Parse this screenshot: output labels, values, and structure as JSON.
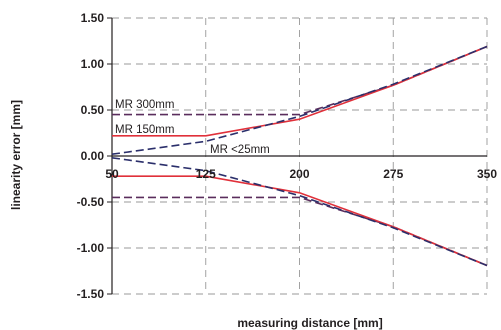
{
  "chart_data": {
    "type": "line",
    "title": "",
    "xlabel": "measuring distance [mm]",
    "ylabel": "linearity error  [mm]",
    "xlim": [
      50,
      350
    ],
    "ylim": [
      -1.5,
      1.5
    ],
    "x_ticks": [
      "50",
      "125",
      "200",
      "275",
      "350"
    ],
    "y_ticks": [
      "1.50",
      "1.00",
      "0.50",
      "0.00",
      "-0.50",
      "-1.00",
      "-1.50"
    ],
    "grid": true,
    "annotations": [
      "MR 300mm",
      "MR 150mm",
      "MR <25mm"
    ],
    "colors": {
      "mr300": "#5a2d5c",
      "mr150": "#e0303a",
      "mr25": "#2b2f6b",
      "grid": "#999999",
      "axis": "#231f20"
    },
    "series": [
      {
        "name": "MR 300mm",
        "style": "dashed",
        "points": [
          [
            50,
            0.45
          ],
          [
            200,
            0.45
          ],
          [
            275,
            0.77
          ],
          [
            350,
            1.19
          ]
        ]
      },
      {
        "name": "MR 300mm",
        "style": "dashed",
        "points": [
          [
            50,
            -0.45
          ],
          [
            200,
            -0.45
          ],
          [
            275,
            -0.77
          ],
          [
            350,
            -1.19
          ]
        ]
      },
      {
        "name": "MR 150mm",
        "style": "solid",
        "points": [
          [
            50,
            0.22
          ],
          [
            125,
            0.22
          ],
          [
            200,
            0.4
          ],
          [
            275,
            0.77
          ],
          [
            350,
            1.19
          ]
        ]
      },
      {
        "name": "MR 150mm",
        "style": "solid",
        "points": [
          [
            50,
            -0.22
          ],
          [
            125,
            -0.22
          ],
          [
            200,
            -0.4
          ],
          [
            275,
            -0.77
          ],
          [
            350,
            -1.19
          ]
        ]
      },
      {
        "name": "MR <25mm",
        "style": "dashed",
        "points": [
          [
            50,
            0.02
          ],
          [
            125,
            0.16
          ],
          [
            200,
            0.43
          ],
          [
            275,
            0.78
          ],
          [
            350,
            1.19
          ]
        ]
      },
      {
        "name": "MR <25mm",
        "style": "dashed",
        "points": [
          [
            50,
            -0.02
          ],
          [
            125,
            -0.16
          ],
          [
            200,
            -0.43
          ],
          [
            275,
            -0.78
          ],
          [
            350,
            -1.19
          ]
        ]
      }
    ]
  }
}
